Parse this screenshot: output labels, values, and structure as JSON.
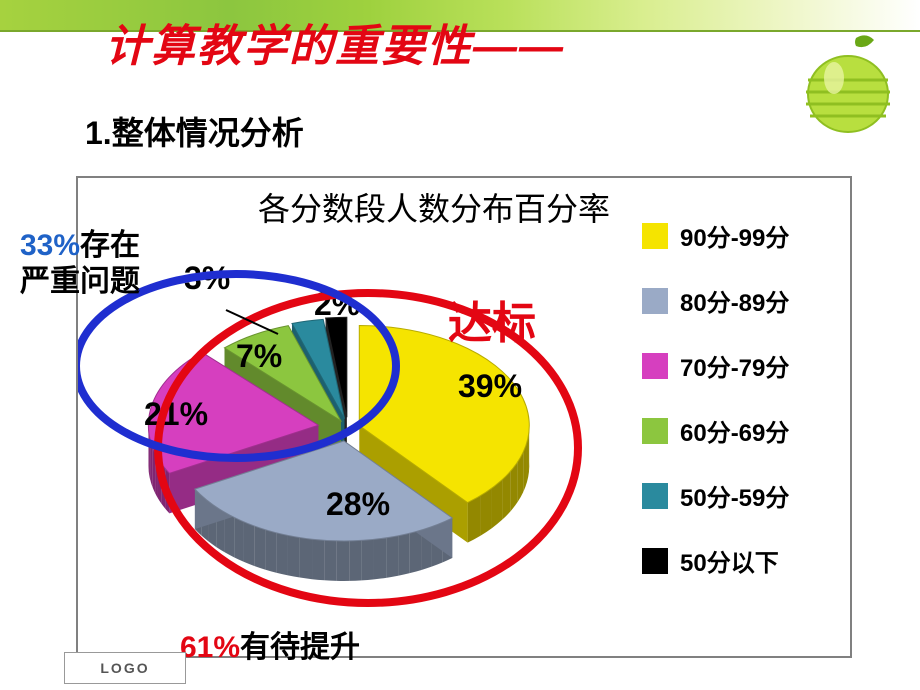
{
  "title": "计算教学的重要性——",
  "subheading_prefix": "1.",
  "subheading": "整体情况分析",
  "chart": {
    "type": "pie-3d-exploded",
    "title": "各分数段人数分布百分率",
    "slices": [
      {
        "label": "90分-99分",
        "value": 39,
        "value_label": "39%",
        "color": "#f5e400",
        "explode": 12
      },
      {
        "label": "80分-89分",
        "value": 28,
        "value_label": "28%",
        "color": "#9aaac6",
        "explode": 22
      },
      {
        "label": "70分-79分",
        "value": 21,
        "value_label": "21%",
        "color": "#d63fbf",
        "explode": 30
      },
      {
        "label": "60分-69分",
        "value": 7,
        "value_label": "7%",
        "color": "#8cc63f",
        "explode": 14
      },
      {
        "label": "50分-59分",
        "value": 3,
        "value_label": "3%",
        "color": "#2a8a9e",
        "explode": 16
      },
      {
        "label": "50分以下",
        "value": 2,
        "value_label": "2%",
        "color": "#000000",
        "explode": 18
      }
    ],
    "background_color": "#ffffff",
    "legend_position": "right",
    "legend_fontsize": 24,
    "value_label_fontsize": 32,
    "title_fontsize": 32
  },
  "annotations": {
    "pass_label": "达标",
    "pass_color": "#e30613",
    "pass_fontsize": 44,
    "improve_percent": "61%",
    "improve_text": "有待提升",
    "improve_color_pct": "#e30613",
    "improve_color_txt": "#000000",
    "improve_fontsize": 30,
    "problem_percent": "33%",
    "problem_text_line1": "存在",
    "problem_text_line2": "严重问题",
    "problem_color_pct": "#1f62c7",
    "problem_color_txt": "#000000",
    "problem_fontsize": 30,
    "red_circle_color": "#e30613",
    "blue_circle_color": "#1f2ed0",
    "circle_stroke": 8
  },
  "logo_text": "LOGO"
}
